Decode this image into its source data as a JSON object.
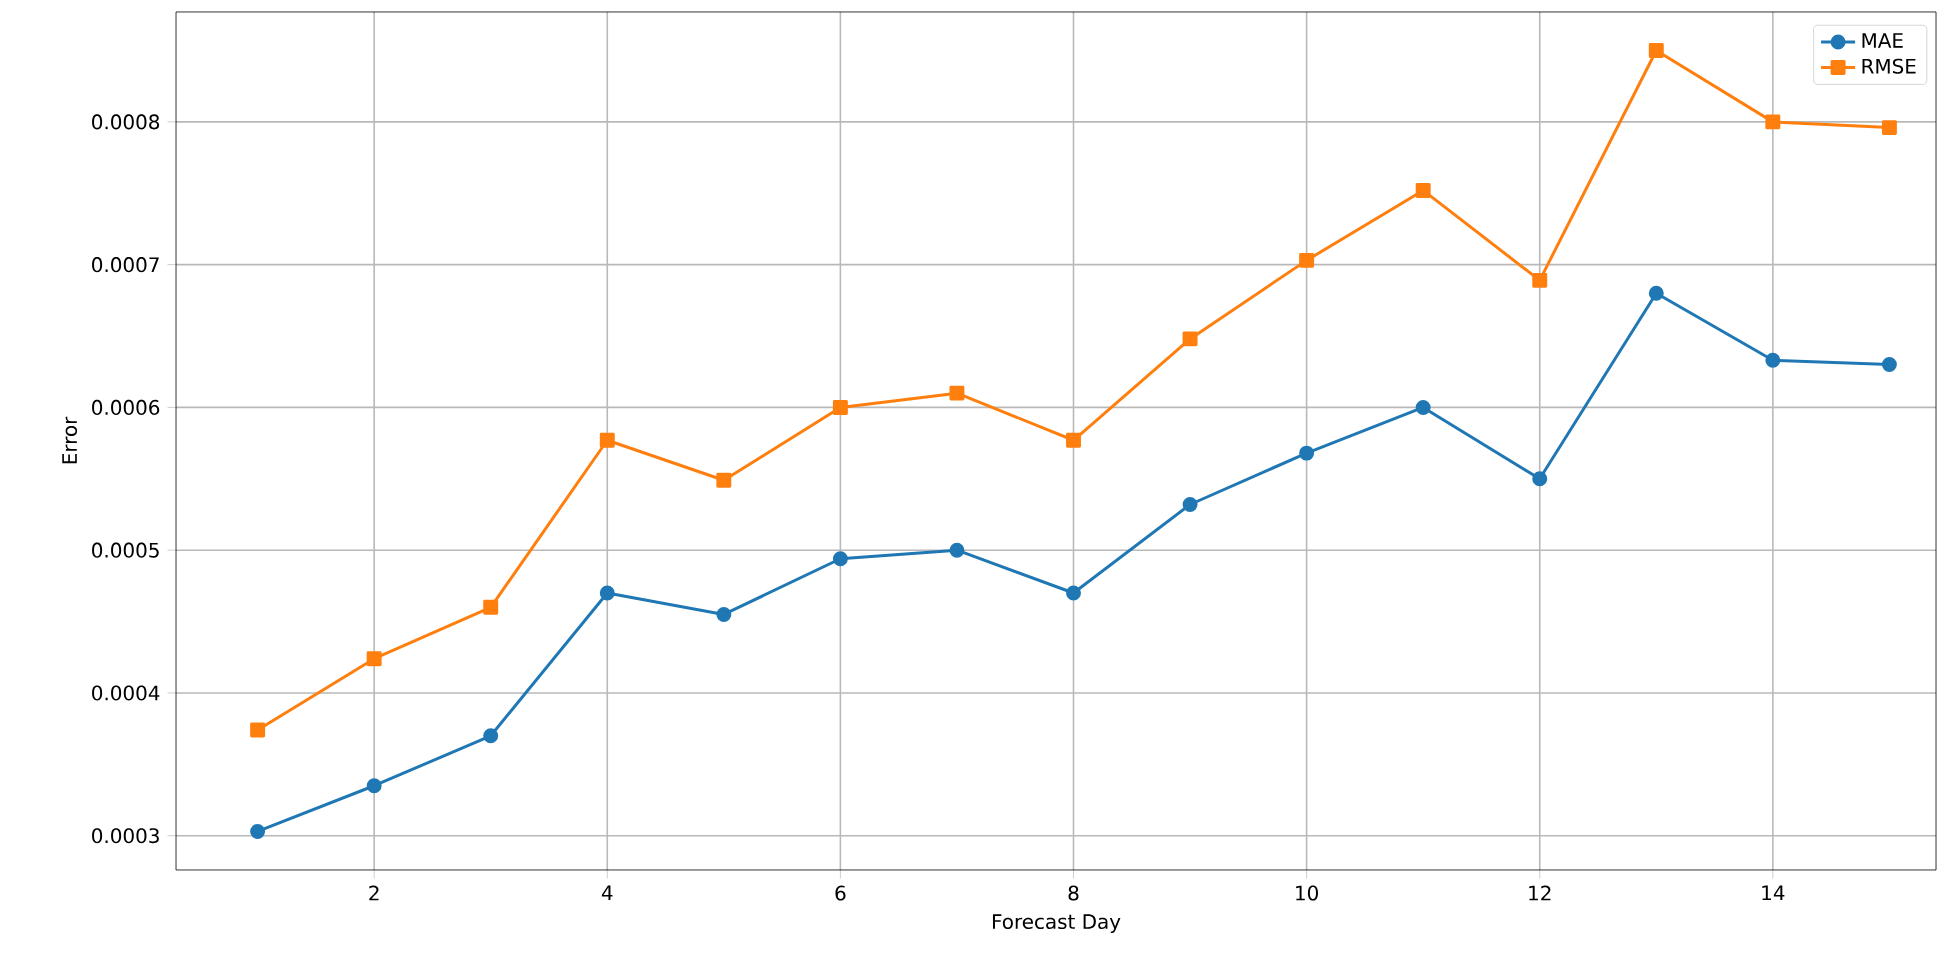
{
  "chart_data": {
    "type": "line",
    "xlabel": "Forecast Day",
    "ylabel": "Error",
    "x": [
      1,
      2,
      3,
      4,
      5,
      6,
      7,
      8,
      9,
      10,
      11,
      12,
      13,
      14,
      15
    ],
    "series": [
      {
        "name": "MAE",
        "color": "#1f77b4",
        "marker": "circle",
        "values": [
          0.000303,
          0.000335,
          0.00037,
          0.00047,
          0.000455,
          0.000494,
          0.0005,
          0.00047,
          0.000532,
          0.000568,
          0.0006,
          0.00055,
          0.00068,
          0.000633,
          0.00063
        ]
      },
      {
        "name": "RMSE",
        "color": "#ff7f0e",
        "marker": "square",
        "values": [
          0.000374,
          0.000424,
          0.00046,
          0.000577,
          0.000549,
          0.0006,
          0.00061,
          0.000577,
          0.000648,
          0.000703,
          0.000752,
          0.000689,
          0.00085,
          0.0008,
          0.000796
        ]
      }
    ],
    "xlim": [
      0.3,
      15.4
    ],
    "ylim": [
      0.000276,
      0.000877
    ],
    "xticks": [
      2,
      4,
      6,
      8,
      10,
      12,
      14
    ],
    "yticks": [
      0.0003,
      0.0004,
      0.0005,
      0.0006,
      0.0007,
      0.0008
    ],
    "grid": true,
    "legend": "top right",
    "line_style": "solid"
  }
}
